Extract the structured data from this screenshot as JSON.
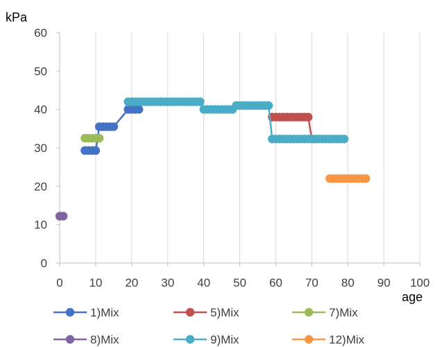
{
  "chart_data": {
    "type": "line",
    "ylabel": "kPa",
    "xlabel": "age",
    "xlim": [
      0,
      100
    ],
    "ylim": [
      0,
      60
    ],
    "x_ticks": [
      0,
      10,
      20,
      30,
      40,
      50,
      60,
      70,
      80,
      90,
      100
    ],
    "y_ticks": [
      0,
      10,
      20,
      30,
      40,
      50,
      60
    ],
    "grid": "vertical",
    "legend_position": "bottom",
    "series": [
      {
        "name": "1)Mix",
        "color": "#4472C4",
        "x": [
          7,
          8,
          9,
          10,
          11,
          12,
          13,
          14,
          15,
          19,
          20,
          21,
          22
        ],
        "y": [
          29.3,
          29.3,
          29.3,
          29.3,
          35.5,
          35.5,
          35.5,
          35.5,
          35.5,
          40,
          40,
          40,
          40
        ]
      },
      {
        "name": "5)Mix",
        "color": "#C0504D",
        "x": [
          59,
          60,
          61,
          62,
          63,
          64,
          65,
          66,
          67,
          68,
          69,
          70
        ],
        "y": [
          38,
          38,
          38,
          38,
          38,
          38,
          38,
          38,
          38,
          38,
          38,
          32.3
        ]
      },
      {
        "name": "7)Mix",
        "color": "#9BBB59",
        "x": [
          7,
          8,
          9,
          10,
          11
        ],
        "y": [
          32.5,
          32.5,
          32.5,
          32.5,
          32.5
        ]
      },
      {
        "name": "8)Mix",
        "color": "#8064A2",
        "x": [
          0,
          1
        ],
        "y": [
          12.2,
          12.2
        ]
      },
      {
        "name": "9)Mix",
        "color": "#4BACC6",
        "x": [
          19,
          20,
          21,
          22,
          23,
          24,
          25,
          26,
          27,
          28,
          29,
          30,
          31,
          32,
          33,
          34,
          35,
          36,
          37,
          38,
          39,
          40,
          41,
          42,
          43,
          44,
          45,
          46,
          47,
          48,
          49,
          50,
          51,
          52,
          53,
          54,
          55,
          56,
          57,
          58,
          59,
          60,
          61,
          62,
          63,
          64,
          65,
          66,
          67,
          68,
          69,
          70,
          71,
          72,
          73,
          74,
          75,
          76,
          77,
          78,
          79
        ],
        "y": [
          42,
          42,
          42,
          42,
          42,
          42,
          42,
          42,
          42,
          42,
          42,
          42,
          42,
          42,
          42,
          42,
          42,
          42,
          42,
          42,
          42,
          40,
          40,
          40,
          40,
          40,
          40,
          40,
          40,
          40,
          41,
          41,
          41,
          41,
          41,
          41,
          41,
          41,
          41,
          41,
          32.3,
          32.3,
          32.3,
          32.3,
          32.3,
          32.3,
          32.3,
          32.3,
          32.3,
          32.3,
          32.3,
          32.3,
          32.3,
          32.3,
          32.3,
          32.3,
          32.3,
          32.3,
          32.3,
          32.3,
          32.3
        ]
      },
      {
        "name": "12)Mix",
        "color": "#F79646",
        "x": [
          75,
          76,
          77,
          78,
          79,
          80,
          81,
          82,
          83,
          84,
          85
        ],
        "y": [
          22,
          22,
          22,
          22,
          22,
          22,
          22,
          22,
          22,
          22,
          22
        ]
      }
    ]
  }
}
